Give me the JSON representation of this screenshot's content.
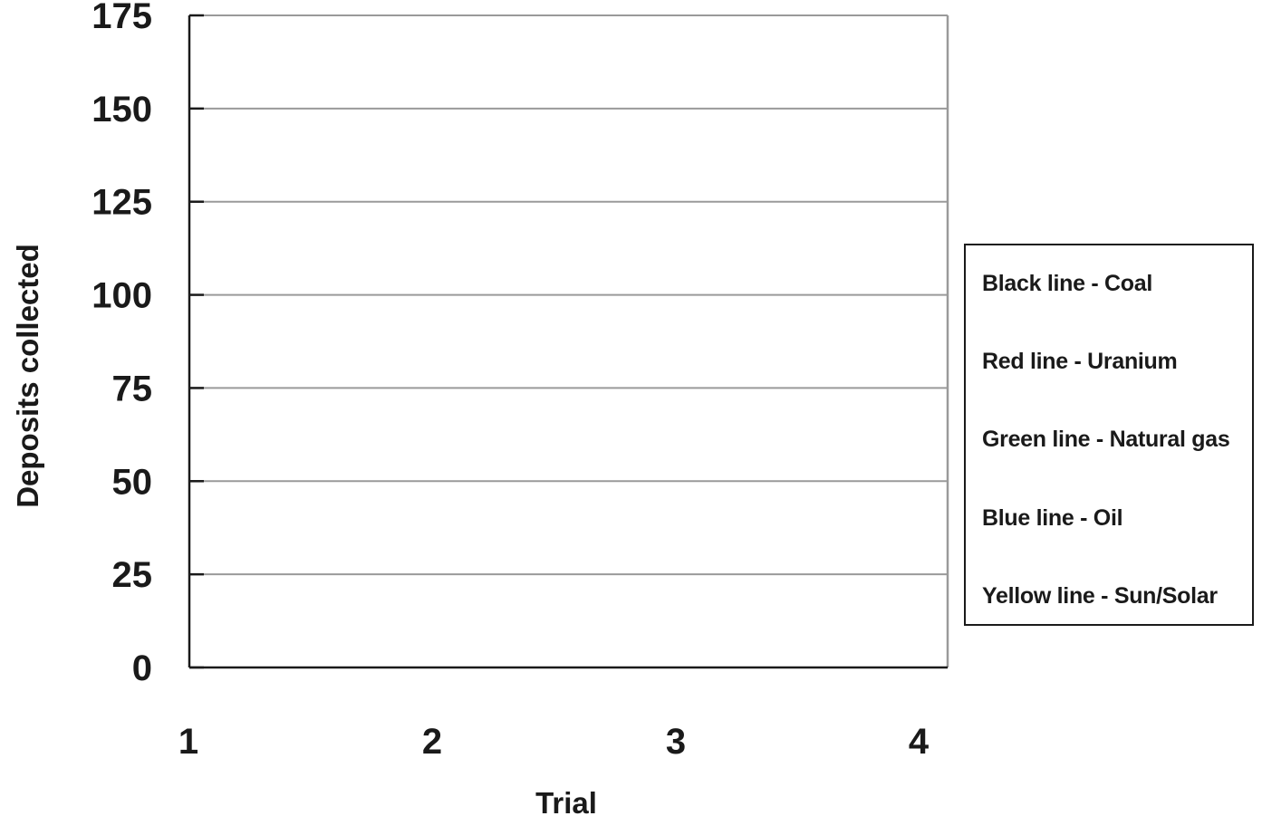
{
  "chart_data": {
    "type": "line",
    "title": "",
    "xlabel": "Trial",
    "ylabel": "Deposits collected",
    "x": [
      1,
      2,
      3,
      4
    ],
    "x_tick_labels": [
      "1",
      "2",
      "3",
      "4"
    ],
    "y_tick_labels": [
      "0",
      "25",
      "50",
      "75",
      "100",
      "125",
      "150",
      "175"
    ],
    "ylim": [
      0,
      175
    ],
    "grid": true,
    "series": [],
    "legend_position": "right",
    "legend": [
      "Black line - Coal",
      "Red line - Uranium",
      "Green line - Natural gas",
      "Blue line - Oil",
      "Yellow line - Sun/Solar"
    ],
    "colors": {
      "axis": "#1a1a1a",
      "grid": "#9a9a9a",
      "text": "#1a1a1a"
    }
  }
}
